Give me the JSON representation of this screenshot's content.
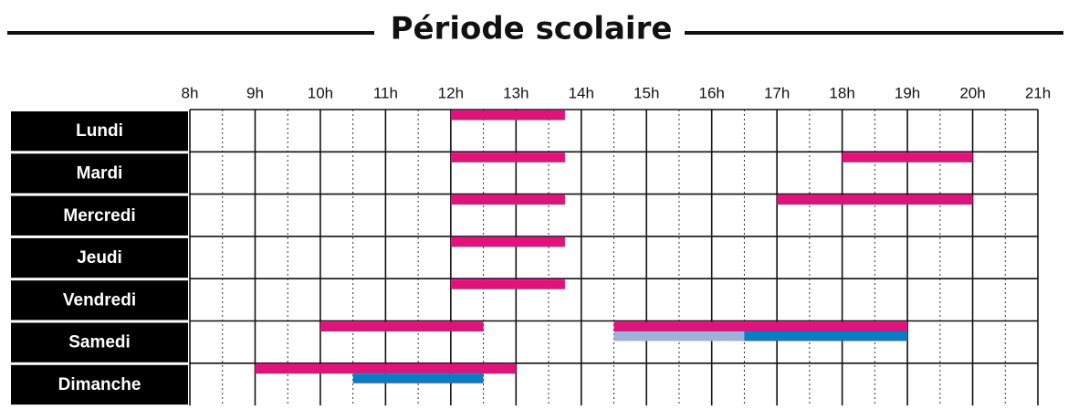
{
  "chart_data": {
    "type": "timetable",
    "title": "Période scolaire",
    "categories": [
      "Lundi",
      "Mardi",
      "Mercredi",
      "Jeudi",
      "Vendredi",
      "Samedi",
      "Dimanche"
    ],
    "xlim": [
      8,
      21
    ],
    "xticks": [
      {
        "value": 8,
        "label": "8h"
      },
      {
        "value": 9,
        "label": "9h"
      },
      {
        "value": 10,
        "label": "10h"
      },
      {
        "value": 11,
        "label": "11h"
      },
      {
        "value": 12,
        "label": "12h"
      },
      {
        "value": 13,
        "label": "13h"
      },
      {
        "value": 14,
        "label": "14h"
      },
      {
        "value": 15,
        "label": "15h"
      },
      {
        "value": 16,
        "label": "16h"
      },
      {
        "value": 17,
        "label": "17h"
      },
      {
        "value": 18,
        "label": "18h"
      },
      {
        "value": 19,
        "label": "19h"
      },
      {
        "value": 20,
        "label": "20h"
      },
      {
        "value": 21,
        "label": "21h"
      }
    ],
    "grid": true,
    "series": [
      {
        "color": "#e2117b",
        "values": [
          [
            [
              12,
              13.75
            ]
          ],
          [
            [
              12,
              13.75
            ],
            [
              18,
              20
            ]
          ],
          [
            [
              12,
              13.75
            ],
            [
              17,
              20
            ]
          ],
          [
            [
              12,
              13.75
            ]
          ],
          [
            [
              12,
              13.75
            ]
          ],
          [
            [
              10,
              12.5
            ],
            [
              14.5,
              19
            ]
          ],
          [
            [
              9,
              13
            ]
          ]
        ]
      },
      {
        "color": "#9fb1da",
        "values": [
          [],
          [],
          [],
          [],
          [],
          [
            [
              14.5,
              16.5
            ]
          ],
          []
        ]
      },
      {
        "color": "#0a7cc3",
        "values": [
          [],
          [],
          [],
          [],
          [],
          [
            [
              16.5,
              19
            ]
          ],
          [
            [
              10.5,
              12.5
            ]
          ]
        ]
      }
    ]
  }
}
